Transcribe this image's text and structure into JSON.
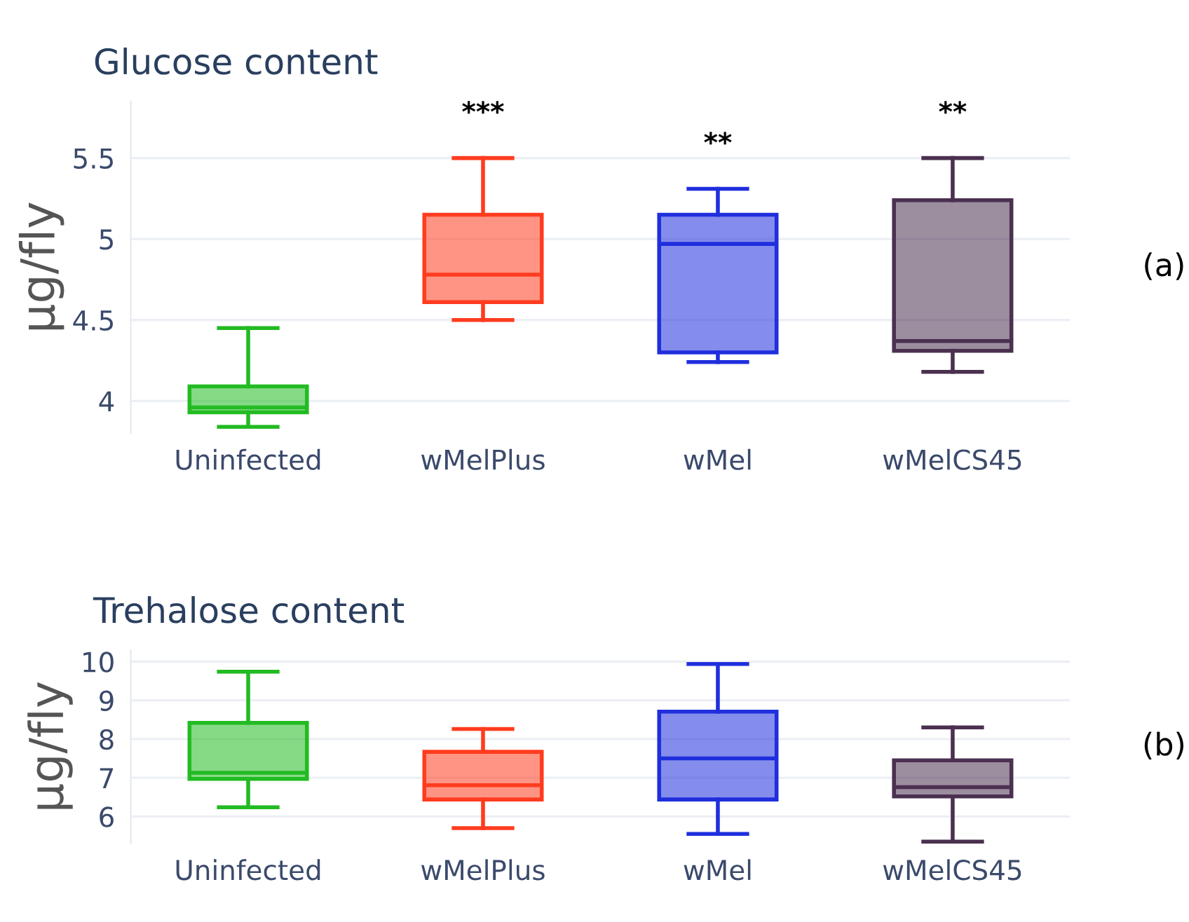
{
  "chart_data": [
    {
      "type": "box",
      "title": "Glucose content",
      "ylabel": "µg/fly",
      "categories": [
        "Uninfected",
        "wMelPlus",
        "wMel",
        "wMelCS45"
      ],
      "colors": [
        "#22bb22",
        "#ff3c1f",
        "#1f2fdd",
        "#4b3050"
      ],
      "boxes": [
        {
          "low": 3.84,
          "q1": 3.93,
          "median": 3.96,
          "q3": 4.09,
          "high": 4.45
        },
        {
          "low": 4.5,
          "q1": 4.61,
          "median": 4.78,
          "q3": 5.15,
          "high": 5.5
        },
        {
          "low": 4.24,
          "q1": 4.3,
          "median": 4.97,
          "q3": 5.15,
          "high": 5.31
        },
        {
          "low": 4.18,
          "q1": 4.31,
          "median": 4.37,
          "q3": 5.24,
          "high": 5.5
        }
      ],
      "ylim": [
        3.8,
        5.85
      ],
      "yticks": [
        4,
        4.5,
        5,
        5.5
      ],
      "grid": "y",
      "annotations": [
        "***",
        "**",
        "**",
        "(a)"
      ]
    },
    {
      "type": "box",
      "title": "Trehalose content",
      "ylabel": "µg/fly",
      "categories": [
        "Uninfected",
        "wMelPlus",
        "wMel",
        "wMelCS45"
      ],
      "colors": [
        "#22bb22",
        "#ff3c1f",
        "#1f2fdd",
        "#4b3050"
      ],
      "boxes": [
        {
          "low": 6.24,
          "q1": 6.97,
          "median": 7.13,
          "q3": 8.42,
          "high": 9.74
        },
        {
          "low": 5.7,
          "q1": 6.44,
          "median": 6.81,
          "q3": 7.67,
          "high": 8.26
        },
        {
          "low": 5.55,
          "q1": 6.44,
          "median": 7.5,
          "q3": 8.71,
          "high": 9.94
        },
        {
          "low": 5.35,
          "q1": 6.52,
          "median": 6.76,
          "q3": 7.45,
          "high": 8.3
        }
      ],
      "ylim": [
        5.3,
        10.3
      ],
      "yticks": [
        6,
        7,
        8,
        9,
        10
      ],
      "grid": "y",
      "annotations": [
        "(b)"
      ]
    }
  ]
}
